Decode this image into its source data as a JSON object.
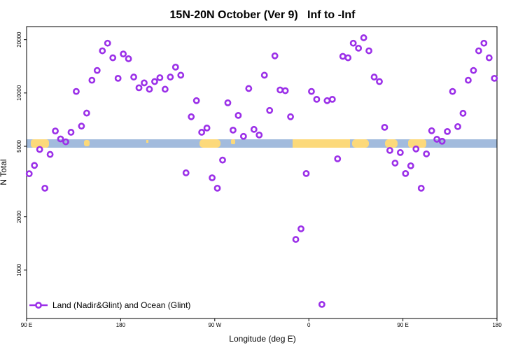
{
  "chart_data": {
    "type": "scatter",
    "title": "15N-20N October (Ver 9)   Inf to -Inf",
    "x_label": "Longitude (deg E)",
    "y_label": "N Total",
    "x": [
      92.5,
      97.5,
      102.5,
      107.5,
      112.5,
      117.5,
      122.5,
      127.5,
      132.5,
      137.5,
      142.5,
      147.5,
      152.5,
      157.5,
      162.5,
      167.5,
      172.5,
      177.5,
      182.5,
      187.5,
      192.5,
      197.5,
      202.5,
      207.5,
      212.5,
      217.5,
      222.5,
      227.5,
      232.5,
      237.5,
      242.5,
      247.5,
      252.5,
      257.5,
      262.5,
      267.5,
      272.5,
      277.5,
      282.5,
      287.5,
      292.5,
      297.5,
      302.5,
      307.5,
      312.5,
      317.5,
      322.5,
      327.5,
      332.5,
      337.5,
      342.5,
      347.5,
      352.5,
      357.5,
      362.5,
      367.5,
      372.5,
      377.5,
      382.5,
      387.5,
      392.5,
      397.5,
      402.5,
      407.5,
      412.5,
      417.5,
      422.5,
      427.5,
      432.5,
      437.5,
      442.5,
      447.5,
      452.5,
      457.5,
      462.5,
      467.5,
      472.5,
      477.5,
      482.5,
      487.5,
      492.5,
      497.5,
      502.5,
      507.5,
      512.5,
      517.5,
      522.5,
      527.5,
      532.5,
      537.5
    ],
    "series": [
      {
        "name": "Land (Nadir&Glint) and Ocean (Glint)",
        "color": "#9b30e8",
        "values": [
          3500,
          3900,
          4800,
          2900,
          4500,
          6100,
          5500,
          5300,
          6000,
          10200,
          6500,
          7700,
          11800,
          13400,
          17300,
          19100,
          15800,
          12100,
          16600,
          15600,
          12300,
          10700,
          11400,
          10500,
          11600,
          12200,
          10500,
          12300,
          14000,
          12600,
          3540,
          7340,
          9050,
          6000,
          6340,
          3320,
          2900,
          4180,
          8800,
          6170,
          7470,
          5690,
          10600,
          6230,
          5790,
          12600,
          7970,
          16200,
          10400,
          10300,
          7340,
          1490,
          1710,
          3510,
          10200,
          9210,
          640,
          9050,
          9210,
          4250,
          16100,
          15800,
          19100,
          17900,
          20500,
          17300,
          12300,
          11600,
          6400,
          4740,
          4020,
          4610,
          3510,
          3880,
          4830,
          2900,
          4530,
          6120,
          5480,
          5340,
          6060,
          10200,
          6460,
          7680,
          11800,
          13400,
          17300,
          19100,
          15800,
          12100
        ]
      }
    ],
    "xlim": [
      90,
      540
    ],
    "xticks": [
      {
        "value": 90,
        "label": "90 E"
      },
      180,
      {
        "value": 270,
        "label": "90 W"
      },
      {
        "value": 360,
        "label": "0"
      },
      {
        "value": 450,
        "label": "90 E"
      },
      {
        "value": 540,
        "label": "180"
      }
    ],
    "ylim": [
      533,
      23700
    ],
    "yticks": [
      1000,
      2000,
      5000,
      10000,
      20000
    ],
    "log_y": true,
    "legend": "lower left"
  }
}
